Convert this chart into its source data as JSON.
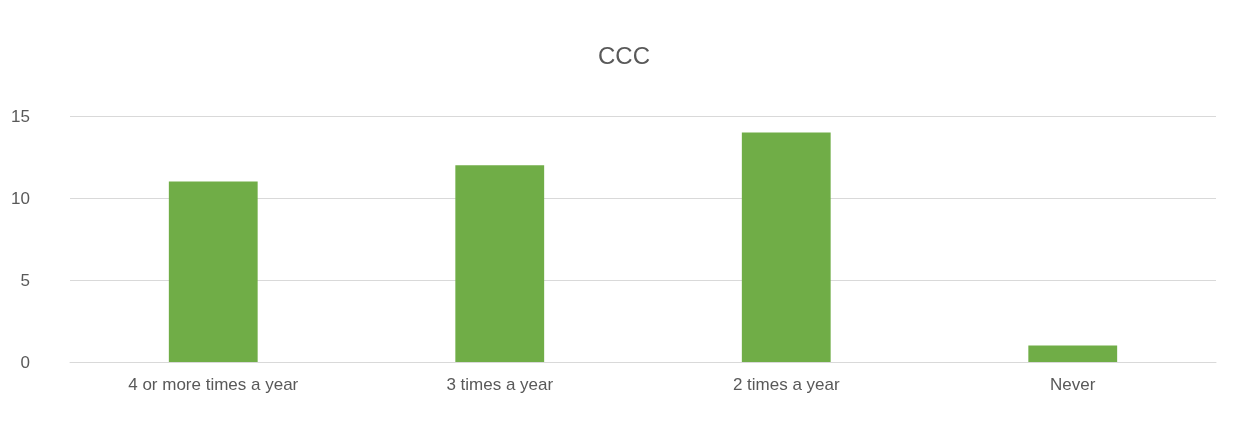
{
  "chart_data": {
    "type": "bar",
    "title": "CCC",
    "categories": [
      "4 or more times a year",
      "3 times a year",
      "2 times a year",
      "Never"
    ],
    "values": [
      11,
      12,
      14,
      1
    ],
    "color": "#70ad47",
    "ylim": [
      0,
      15
    ],
    "yticks": [
      0,
      5,
      10,
      15
    ],
    "grid": "y"
  }
}
